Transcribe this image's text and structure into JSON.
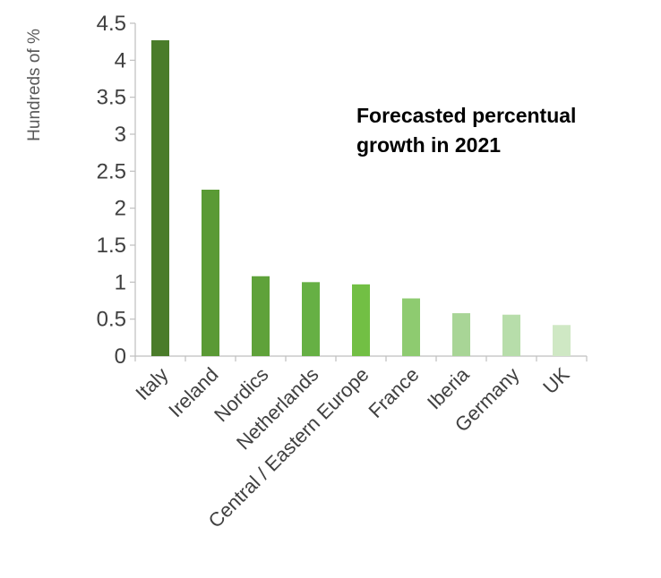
{
  "chart_data": {
    "type": "bar",
    "title_lines": [
      "Forecasted percentual",
      "growth in 2021"
    ],
    "xlabel": "",
    "ylabel": "Hundreds of %",
    "categories": [
      "Italy",
      "Ireland",
      "Nordics",
      "Netherlands",
      "Central / Eastern Europe",
      "France",
      "Iberia",
      "Germany",
      "UK"
    ],
    "values": [
      4.27,
      2.25,
      1.08,
      1.0,
      0.97,
      0.78,
      0.58,
      0.56,
      0.42
    ],
    "colors": [
      "#4a7c2a",
      "#5a9a35",
      "#5fa23a",
      "#66b044",
      "#72bf44",
      "#8ecb70",
      "#a8d596",
      "#b7ddaa",
      "#cfe8c4"
    ],
    "yticks": [
      "0",
      "0.5",
      "1",
      "1.5",
      "2",
      "2.5",
      "3",
      "3.5",
      "4",
      "4.5"
    ],
    "ylim": [
      0,
      4.5
    ],
    "grid": false,
    "legend": false
  }
}
